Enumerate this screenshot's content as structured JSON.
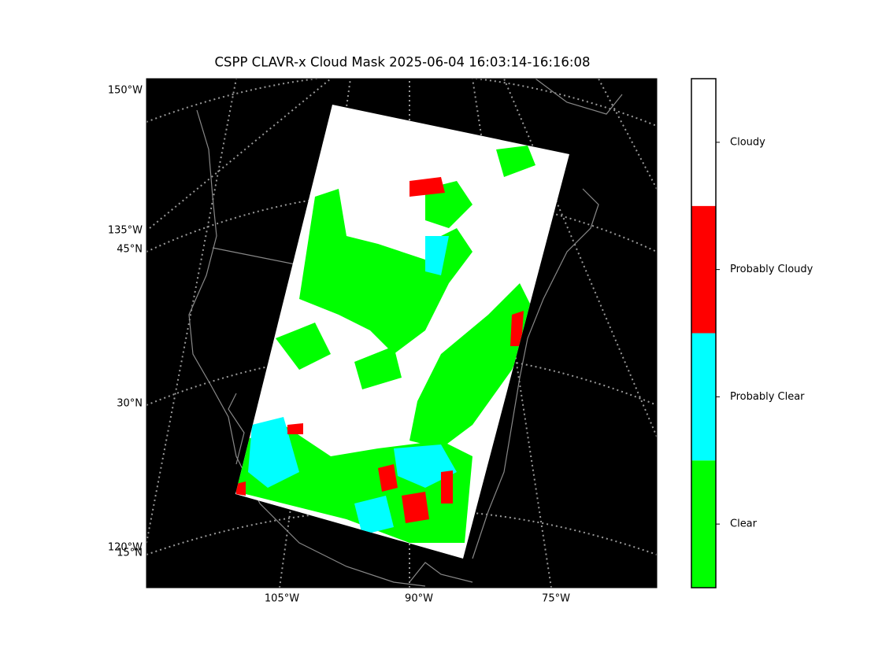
{
  "title": "CSPP CLAVR-x Cloud Mask 2025-06-04 16:03:14-16:16:08",
  "map": {
    "left_labels": [
      "150°W",
      "135°W",
      "45°N",
      "30°N",
      "120°W",
      "15°N"
    ],
    "bottom_labels": [
      "105°W",
      "90°W",
      "75°W"
    ]
  },
  "colorbar": {
    "classes": [
      {
        "label": "Clear",
        "color": "#00ff00"
      },
      {
        "label": "Probably Clear",
        "color": "#00ffff"
      },
      {
        "label": "Probably Cloudy",
        "color": "#ff0000"
      },
      {
        "label": "Cloudy",
        "color": "#ffffff"
      }
    ]
  }
}
